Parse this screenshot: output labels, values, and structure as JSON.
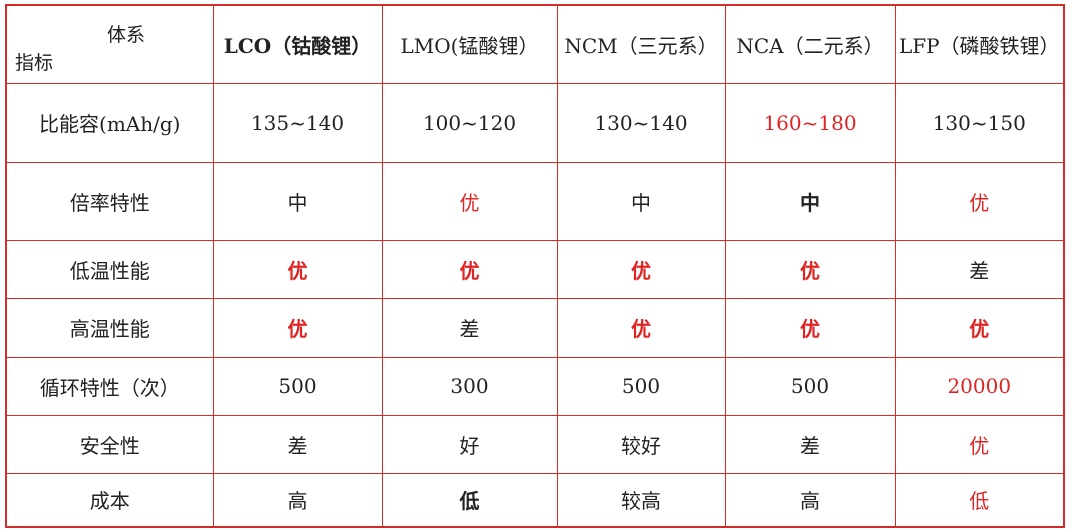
{
  "corner": {
    "top": "体系",
    "bottom": "指标"
  },
  "columns": [
    {
      "label": "LCO（钴酸锂）",
      "bold": true
    },
    {
      "label": "LMO(锰酸锂）",
      "bold": false
    },
    {
      "label": "NCM（三元系）",
      "bold": false
    },
    {
      "label": "NCA（二元系）",
      "bold": false
    },
    {
      "label": "LFP（磷酸铁锂）",
      "bold": false
    }
  ],
  "rows": [
    {
      "label": "比能容(mAh/g)",
      "cells": [
        {
          "v": "135~140",
          "red": false,
          "bold": false
        },
        {
          "v": "100~120",
          "red": false,
          "bold": false
        },
        {
          "v": "130~140",
          "red": false,
          "bold": false
        },
        {
          "v": "160~180",
          "red": true,
          "bold": false
        },
        {
          "v": "130~150",
          "red": false,
          "bold": false
        }
      ]
    },
    {
      "label": "倍率特性",
      "cells": [
        {
          "v": "中",
          "red": false,
          "bold": false
        },
        {
          "v": "优",
          "red": true,
          "bold": false
        },
        {
          "v": "中",
          "red": false,
          "bold": false
        },
        {
          "v": "中",
          "red": false,
          "bold": true
        },
        {
          "v": "优",
          "red": true,
          "bold": false
        }
      ]
    },
    {
      "label": "低温性能",
      "cells": [
        {
          "v": "优",
          "red": true,
          "bold": true
        },
        {
          "v": "优",
          "red": true,
          "bold": true
        },
        {
          "v": "优",
          "red": true,
          "bold": true
        },
        {
          "v": "优",
          "red": true,
          "bold": true
        },
        {
          "v": "差",
          "red": false,
          "bold": false
        }
      ]
    },
    {
      "label": "高温性能",
      "cells": [
        {
          "v": "优",
          "red": true,
          "bold": true
        },
        {
          "v": "差",
          "red": false,
          "bold": false
        },
        {
          "v": "优",
          "red": true,
          "bold": true
        },
        {
          "v": "优",
          "red": true,
          "bold": true
        },
        {
          "v": "优",
          "red": true,
          "bold": true
        }
      ]
    },
    {
      "label": "循环特性（次）",
      "cells": [
        {
          "v": "500",
          "red": false,
          "bold": false
        },
        {
          "v": "300",
          "red": false,
          "bold": false
        },
        {
          "v": "500",
          "red": false,
          "bold": false
        },
        {
          "v": "500",
          "red": false,
          "bold": false
        },
        {
          "v": "20000",
          "red": true,
          "bold": false
        }
      ]
    },
    {
      "label": "安全性",
      "cells": [
        {
          "v": "差",
          "red": false,
          "bold": false
        },
        {
          "v": "好",
          "red": false,
          "bold": false
        },
        {
          "v": "较好",
          "red": false,
          "bold": false
        },
        {
          "v": "差",
          "red": false,
          "bold": false
        },
        {
          "v": "优",
          "red": true,
          "bold": false
        }
      ]
    },
    {
      "label": "成本",
      "cells": [
        {
          "v": "高",
          "red": false,
          "bold": false
        },
        {
          "v": "低",
          "red": false,
          "bold": true
        },
        {
          "v": "较高",
          "red": false,
          "bold": false
        },
        {
          "v": "高",
          "red": false,
          "bold": false
        },
        {
          "v": "低",
          "red": true,
          "bold": false
        }
      ]
    }
  ],
  "colors": {
    "border": "#d42b2b",
    "highlight": "#e02424",
    "text": "#222222"
  }
}
